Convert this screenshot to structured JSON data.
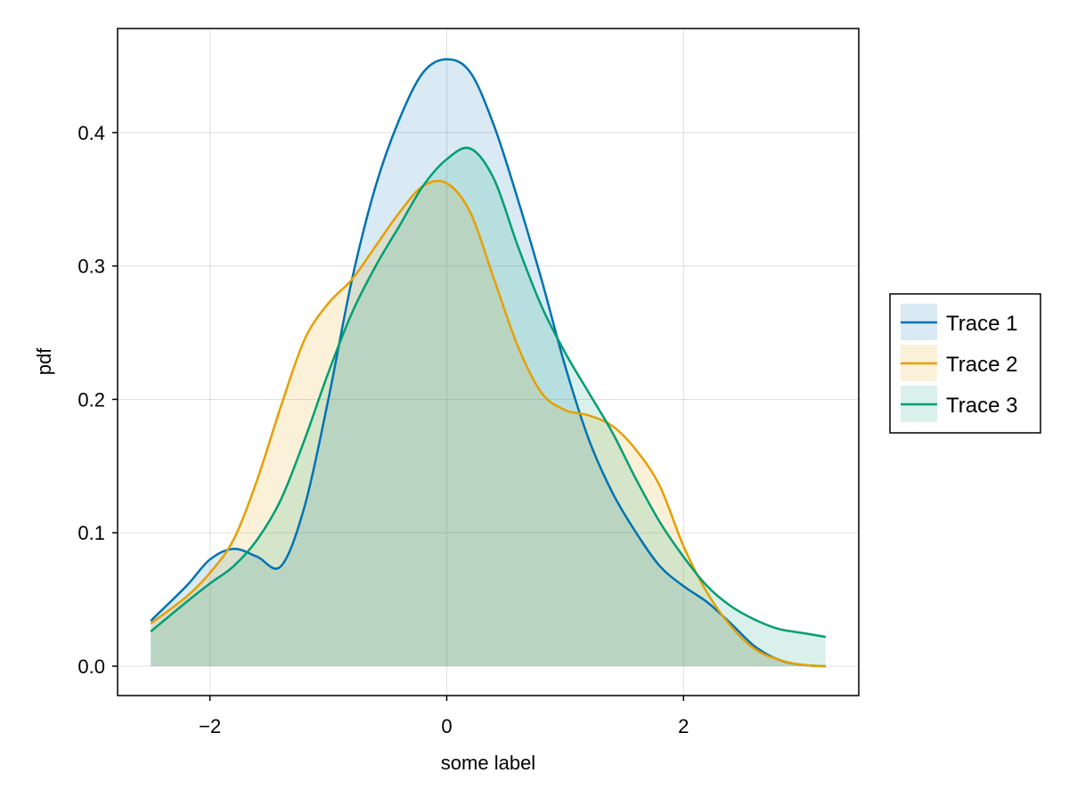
{
  "chart_data": {
    "type": "area",
    "xlabel": "some label",
    "ylabel": "pdf",
    "xlim": [
      -2.78,
      3.48
    ],
    "ylim": [
      -0.022,
      0.478
    ],
    "xticks": [
      -2,
      0,
      2
    ],
    "xtick_labels": [
      "−2",
      "0",
      "2"
    ],
    "yticks": [
      0.0,
      0.1,
      0.2,
      0.3,
      0.4
    ],
    "ytick_labels": [
      "0.0",
      "0.1",
      "0.2",
      "0.3",
      "0.4"
    ],
    "grid": true,
    "legend_position": "right",
    "series": [
      {
        "name": "Trace 1",
        "color": "#0072B2",
        "x": [
          -2.5,
          -2.2,
          -2.0,
          -1.8,
          -1.6,
          -1.4,
          -1.2,
          -1.0,
          -0.8,
          -0.6,
          -0.4,
          -0.2,
          0.0,
          0.2,
          0.4,
          0.6,
          0.8,
          1.0,
          1.2,
          1.4,
          1.6,
          1.8,
          2.0,
          2.2,
          2.4,
          2.6,
          2.8,
          3.0,
          3.2
        ],
        "values": [
          0.034,
          0.06,
          0.08,
          0.088,
          0.082,
          0.075,
          0.12,
          0.2,
          0.29,
          0.36,
          0.41,
          0.445,
          0.455,
          0.445,
          0.405,
          0.35,
          0.29,
          0.225,
          0.17,
          0.13,
          0.1,
          0.075,
          0.06,
          0.048,
          0.032,
          0.015,
          0.005,
          0.001,
          0.0
        ]
      },
      {
        "name": "Trace 2",
        "color": "#E69F00",
        "x": [
          -2.5,
          -2.2,
          -2.0,
          -1.8,
          -1.6,
          -1.4,
          -1.2,
          -1.0,
          -0.8,
          -0.6,
          -0.4,
          -0.2,
          0.0,
          0.2,
          0.4,
          0.6,
          0.8,
          1.0,
          1.2,
          1.4,
          1.6,
          1.8,
          2.0,
          2.2,
          2.4,
          2.6,
          2.8,
          3.0,
          3.2
        ],
        "values": [
          0.032,
          0.052,
          0.07,
          0.095,
          0.14,
          0.195,
          0.245,
          0.272,
          0.29,
          0.315,
          0.34,
          0.36,
          0.362,
          0.34,
          0.29,
          0.24,
          0.205,
          0.192,
          0.188,
          0.18,
          0.162,
          0.135,
          0.09,
          0.055,
          0.03,
          0.013,
          0.005,
          0.001,
          0.0
        ]
      },
      {
        "name": "Trace 3",
        "color": "#009E73",
        "x": [
          -2.5,
          -2.2,
          -2.0,
          -1.8,
          -1.6,
          -1.4,
          -1.2,
          -1.0,
          -0.8,
          -0.6,
          -0.4,
          -0.2,
          0.0,
          0.2,
          0.4,
          0.6,
          0.8,
          1.0,
          1.2,
          1.4,
          1.6,
          1.8,
          2.0,
          2.2,
          2.4,
          2.6,
          2.8,
          3.0,
          3.2
        ],
        "values": [
          0.026,
          0.048,
          0.062,
          0.075,
          0.095,
          0.125,
          0.17,
          0.22,
          0.265,
          0.3,
          0.33,
          0.36,
          0.38,
          0.388,
          0.365,
          0.315,
          0.27,
          0.235,
          0.205,
          0.175,
          0.14,
          0.108,
          0.082,
          0.06,
          0.045,
          0.035,
          0.028,
          0.025,
          0.022
        ]
      }
    ]
  }
}
